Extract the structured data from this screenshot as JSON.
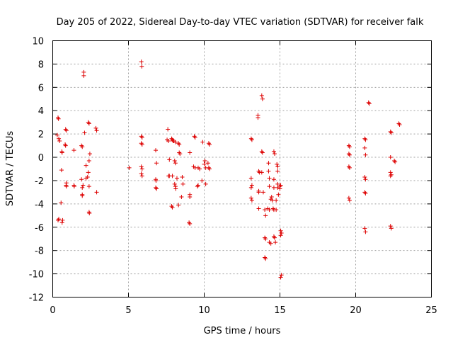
{
  "chart_data": {
    "type": "scatter",
    "title": "Day 205 of 2022, Sidereal Day-to-day VTEC variation (SDTVAR) for receiver falk",
    "xlabel": "GPS time / hours",
    "ylabel": "SDTVAR / TECUs",
    "xlim": [
      0,
      25
    ],
    "ylim": [
      -12,
      10
    ],
    "xticks": [
      0,
      5,
      10,
      15,
      20,
      25
    ],
    "yticks": [
      -12,
      -10,
      -8,
      -6,
      -4,
      -2,
      0,
      2,
      4,
      6,
      8,
      10
    ],
    "grid": true,
    "marker": "+",
    "color": "#dd0000",
    "series": [
      {
        "name": "falk",
        "points": [
          [
            0.35,
            3.4
          ],
          [
            0.38,
            3.3
          ],
          [
            0.3,
            1.9
          ],
          [
            0.4,
            1.6
          ],
          [
            0.45,
            1.4
          ],
          [
            0.6,
            0.5
          ],
          [
            0.62,
            0.4
          ],
          [
            0.58,
            -1.1
          ],
          [
            0.55,
            -3.9
          ],
          [
            0.35,
            -5.4
          ],
          [
            0.4,
            -5.3
          ],
          [
            0.65,
            -5.4
          ],
          [
            0.62,
            -5.6
          ],
          [
            0.85,
            2.4
          ],
          [
            0.9,
            2.3
          ],
          [
            0.82,
            1.1
          ],
          [
            0.85,
            1.0
          ],
          [
            0.9,
            -2.2
          ],
          [
            0.88,
            -2.4
          ],
          [
            0.9,
            -2.5
          ],
          [
            1.4,
            0.6
          ],
          [
            1.4,
            -2.4
          ],
          [
            1.42,
            -2.5
          ],
          [
            1.9,
            1.0
          ],
          [
            1.95,
            0.9
          ],
          [
            1.9,
            -1.9
          ],
          [
            1.95,
            -3.2
          ],
          [
            1.95,
            -3.3
          ],
          [
            1.95,
            -2.6
          ],
          [
            2.0,
            -2.4
          ],
          [
            2.05,
            7.3
          ],
          [
            2.05,
            7.0
          ],
          [
            2.1,
            2.1
          ],
          [
            2.2,
            -0.7
          ],
          [
            2.2,
            -1.8
          ],
          [
            2.3,
            -1.7
          ],
          [
            2.35,
            3.0
          ],
          [
            2.4,
            2.9
          ],
          [
            2.45,
            0.3
          ],
          [
            2.4,
            -0.3
          ],
          [
            2.35,
            -1.3
          ],
          [
            2.4,
            -2.5
          ],
          [
            2.4,
            -4.7
          ],
          [
            2.42,
            -4.8
          ],
          [
            2.85,
            2.5
          ],
          [
            2.9,
            2.3
          ],
          [
            2.9,
            -3.0
          ],
          [
            5.05,
            -0.9
          ],
          [
            5.85,
            8.2
          ],
          [
            5.88,
            7.8
          ],
          [
            5.85,
            1.8
          ],
          [
            5.9,
            1.7
          ],
          [
            5.85,
            1.2
          ],
          [
            5.9,
            1.1
          ],
          [
            5.85,
            -0.8
          ],
          [
            5.9,
            -1.0
          ],
          [
            5.85,
            -1.4
          ],
          [
            5.9,
            -1.6
          ],
          [
            6.8,
            0.6
          ],
          [
            6.85,
            -0.5
          ],
          [
            6.8,
            -1.9
          ],
          [
            6.82,
            -2.0
          ],
          [
            6.8,
            -2.6
          ],
          [
            6.85,
            -2.7
          ],
          [
            7.6,
            2.4
          ],
          [
            7.55,
            1.5
          ],
          [
            7.65,
            1.4
          ],
          [
            7.7,
            -0.2
          ],
          [
            7.65,
            -1.6
          ],
          [
            7.7,
            -1.6
          ],
          [
            7.85,
            1.6
          ],
          [
            7.9,
            1.5
          ],
          [
            7.95,
            1.4
          ],
          [
            7.9,
            -1.6
          ],
          [
            7.85,
            -4.2
          ],
          [
            7.9,
            -4.3
          ],
          [
            8.0,
            1.4
          ],
          [
            8.1,
            1.3
          ],
          [
            8.05,
            -0.3
          ],
          [
            8.1,
            -0.5
          ],
          [
            8.05,
            -2.3
          ],
          [
            8.1,
            -2.5
          ],
          [
            8.12,
            -2.7
          ],
          [
            8.2,
            -1.8
          ],
          [
            8.3,
            1.2
          ],
          [
            8.35,
            1.1
          ],
          [
            8.35,
            0.4
          ],
          [
            8.4,
            0.3
          ],
          [
            8.3,
            -4.1
          ],
          [
            8.5,
            -3.4
          ],
          [
            8.55,
            -1.7
          ],
          [
            8.6,
            -2.3
          ],
          [
            9.05,
            0.4
          ],
          [
            9.05,
            -3.2
          ],
          [
            9.05,
            -3.4
          ],
          [
            9.0,
            -5.6
          ],
          [
            9.05,
            -5.7
          ],
          [
            9.35,
            1.8
          ],
          [
            9.4,
            1.7
          ],
          [
            9.3,
            -0.8
          ],
          [
            9.4,
            -0.9
          ],
          [
            9.55,
            -2.5
          ],
          [
            9.6,
            -2.4
          ],
          [
            9.6,
            -0.9
          ],
          [
            9.7,
            -1.0
          ],
          [
            9.85,
            -2.0
          ],
          [
            9.9,
            1.3
          ],
          [
            10.05,
            -0.3
          ],
          [
            10.0,
            -0.6
          ],
          [
            10.1,
            -0.9
          ],
          [
            10.1,
            -2.3
          ],
          [
            10.25,
            -0.5
          ],
          [
            10.3,
            -0.9
          ],
          [
            10.35,
            -1.0
          ],
          [
            10.3,
            1.2
          ],
          [
            10.35,
            1.1
          ],
          [
            13.1,
            1.6
          ],
          [
            13.15,
            1.5
          ],
          [
            13.1,
            -1.8
          ],
          [
            13.15,
            -2.4
          ],
          [
            13.1,
            -2.6
          ],
          [
            13.1,
            -3.5
          ],
          [
            13.15,
            -3.7
          ],
          [
            13.55,
            3.6
          ],
          [
            13.55,
            3.4
          ],
          [
            13.6,
            -1.2
          ],
          [
            13.65,
            -1.3
          ],
          [
            13.6,
            -2.9
          ],
          [
            13.6,
            -3.0
          ],
          [
            13.6,
            -4.4
          ],
          [
            13.8,
            5.3
          ],
          [
            13.85,
            5.0
          ],
          [
            13.8,
            0.5
          ],
          [
            13.85,
            0.4
          ],
          [
            13.8,
            -1.3
          ],
          [
            13.9,
            -3.0
          ],
          [
            14.0,
            -4.5
          ],
          [
            14.05,
            -5.0
          ],
          [
            14.0,
            -6.9
          ],
          [
            14.05,
            -7.0
          ],
          [
            14.0,
            -8.6
          ],
          [
            14.05,
            -8.7
          ],
          [
            14.2,
            -4.4
          ],
          [
            14.3,
            -4.5
          ],
          [
            14.25,
            -0.5
          ],
          [
            14.25,
            -1.2
          ],
          [
            14.3,
            -1.8
          ],
          [
            14.3,
            -2.5
          ],
          [
            14.4,
            -3.6
          ],
          [
            14.45,
            -3.4
          ],
          [
            14.3,
            -7.3
          ],
          [
            14.4,
            -7.4
          ],
          [
            14.5,
            -3.7
          ],
          [
            14.55,
            -4.4
          ],
          [
            14.6,
            -4.5
          ],
          [
            14.6,
            0.5
          ],
          [
            14.65,
            0.3
          ],
          [
            14.6,
            -1.9
          ],
          [
            14.6,
            -2.6
          ],
          [
            14.6,
            -6.8
          ],
          [
            14.65,
            -6.9
          ],
          [
            14.7,
            -7.3
          ],
          [
            14.75,
            -3.7
          ],
          [
            14.75,
            -4.5
          ],
          [
            14.8,
            -0.6
          ],
          [
            14.85,
            -0.8
          ],
          [
            14.85,
            -1.2
          ],
          [
            14.85,
            -2.3
          ],
          [
            14.85,
            -2.6
          ],
          [
            14.9,
            -3.2
          ],
          [
            15.0,
            -2.5
          ],
          [
            15.05,
            -2.4
          ],
          [
            15.0,
            -2.7
          ],
          [
            15.05,
            -6.3
          ],
          [
            15.1,
            -6.5
          ],
          [
            15.05,
            -6.7
          ],
          [
            15.1,
            -10.1
          ],
          [
            15.05,
            -10.3
          ],
          [
            19.55,
            1.0
          ],
          [
            19.6,
            0.9
          ],
          [
            19.55,
            0.3
          ],
          [
            19.6,
            0.2
          ],
          [
            19.55,
            -0.8
          ],
          [
            19.6,
            -0.9
          ],
          [
            19.55,
            -3.5
          ],
          [
            19.6,
            -3.7
          ],
          [
            20.6,
            1.6
          ],
          [
            20.65,
            1.5
          ],
          [
            20.6,
            0.8
          ],
          [
            20.65,
            0.2
          ],
          [
            20.6,
            -1.7
          ],
          [
            20.65,
            -1.9
          ],
          [
            20.6,
            -3.0
          ],
          [
            20.65,
            -3.1
          ],
          [
            20.6,
            -6.1
          ],
          [
            20.65,
            -6.4
          ],
          [
            20.85,
            4.7
          ],
          [
            20.9,
            4.6
          ],
          [
            22.3,
            2.2
          ],
          [
            22.35,
            2.1
          ],
          [
            22.3,
            0.0
          ],
          [
            22.3,
            -1.3
          ],
          [
            22.35,
            -1.5
          ],
          [
            22.3,
            -1.6
          ],
          [
            22.3,
            -5.9
          ],
          [
            22.35,
            -6.1
          ],
          [
            22.55,
            -0.3
          ],
          [
            22.6,
            -0.4
          ],
          [
            22.85,
            2.9
          ],
          [
            22.9,
            2.8
          ]
        ]
      }
    ]
  }
}
